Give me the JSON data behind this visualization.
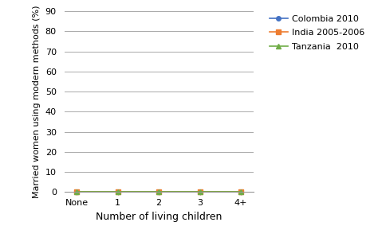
{
  "x_labels": [
    "None",
    "1",
    "2",
    "3",
    "4+"
  ],
  "x_values": [
    0,
    1,
    2,
    3,
    4
  ],
  "series": [
    {
      "label": "Colombia 2010",
      "color": "#4472C4",
      "marker": "o",
      "values": [
        0,
        0,
        0,
        0,
        0
      ]
    },
    {
      "label": "India 2005-2006",
      "color": "#ED7D31",
      "marker": "s",
      "values": [
        0,
        0,
        0,
        0,
        0
      ]
    },
    {
      "label": "Tanzania  2010",
      "color": "#70AD47",
      "marker": "^",
      "values": [
        0,
        0,
        0,
        0,
        0
      ]
    }
  ],
  "ylabel": "Married women using modern methods (%)",
  "xlabel": "Number of living children",
  "ylim": [
    0,
    90
  ],
  "yticks": [
    0,
    10,
    20,
    30,
    40,
    50,
    60,
    70,
    80,
    90
  ],
  "grid_color": "#AAAAAA",
  "background_color": "#FFFFFF",
  "tick_fontsize": 8,
  "label_fontsize": 8,
  "xlabel_fontsize": 9,
  "legend_fontsize": 8
}
